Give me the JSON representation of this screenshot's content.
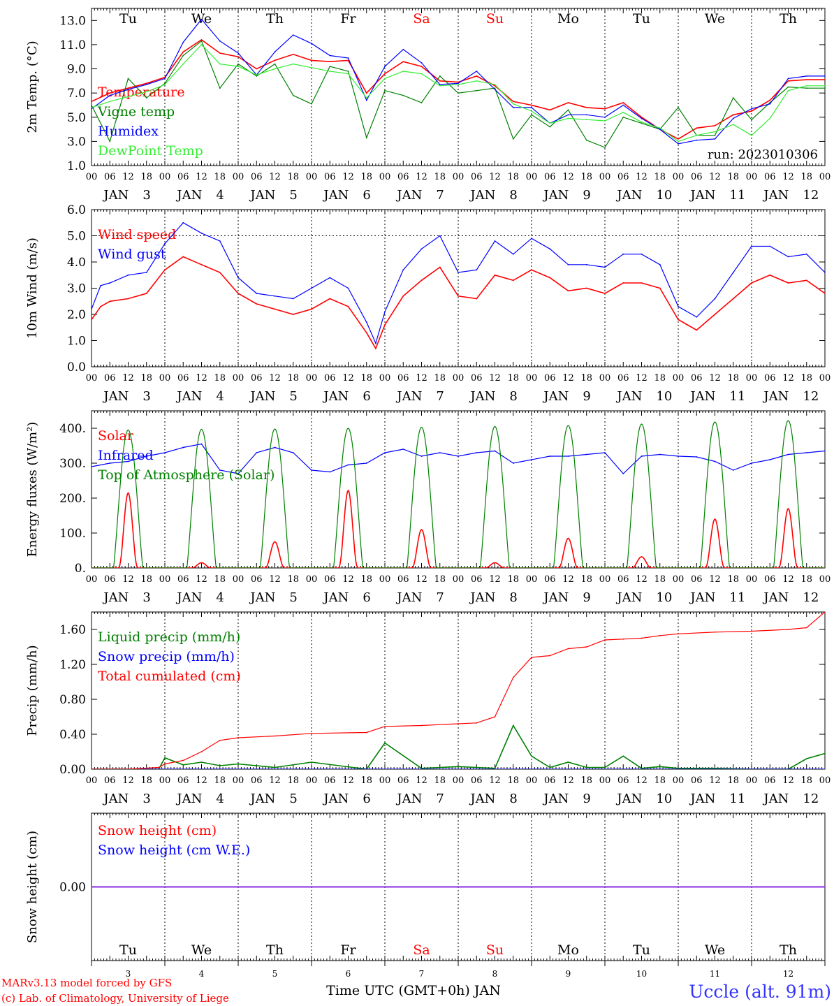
{
  "colors": {
    "temperature": "#ff0000",
    "vigne": "#008000",
    "humidex": "#0000ff",
    "dewpoint": "#33ee33",
    "weekend": "#ff0000",
    "axis": "#000000",
    "station": "#3333ff",
    "snow_line": "#8a2be2"
  },
  "days": [
    {
      "dow": "Tu",
      "month": "JAN",
      "date": "3",
      "weekend": false
    },
    {
      "dow": "We",
      "month": "JAN",
      "date": "4",
      "weekend": false
    },
    {
      "dow": "Th",
      "month": "JAN",
      "date": "5",
      "weekend": false
    },
    {
      "dow": "Fr",
      "month": "JAN",
      "date": "6",
      "weekend": false
    },
    {
      "dow": "Sa",
      "month": "JAN",
      "date": "7",
      "weekend": true
    },
    {
      "dow": "Su",
      "month": "JAN",
      "date": "8",
      "weekend": true
    },
    {
      "dow": "Mo",
      "month": "JAN",
      "date": "9",
      "weekend": false
    },
    {
      "dow": "Tu",
      "month": "JAN",
      "date": "10",
      "weekend": false
    },
    {
      "dow": "We",
      "month": "JAN",
      "date": "11",
      "weekend": false
    },
    {
      "dow": "Th",
      "month": "JAN",
      "date": "12",
      "weekend": false
    }
  ],
  "hour_ticks": [
    "00",
    "06",
    "12",
    "18"
  ],
  "final_tick": "00",
  "footer": {
    "model": "MARv3.13 model forced by GFS",
    "credit": "(c) Lab. of Climatology, University of Liege",
    "xaxis": "Time UTC (GMT+0h) JAN",
    "station": "Uccle (alt. 91m)"
  },
  "chart_data": [
    {
      "type": "line",
      "ylabel": "2m Temp. (°C)",
      "ylim": [
        1.0,
        14.0
      ],
      "yticks": [
        "1.0",
        "3.0",
        "5.0",
        "7.0",
        "9.0",
        "11.0",
        "13.0"
      ],
      "ytick_values": [
        1,
        3,
        5,
        7,
        9,
        11,
        13
      ],
      "annotation": "run: 2023010306",
      "x_hours_since_jan3_00": [
        0,
        6,
        12,
        18,
        24,
        30,
        36,
        42,
        48,
        54,
        60,
        66,
        72,
        78,
        84,
        90,
        96,
        102,
        108,
        114,
        120,
        126,
        132,
        138,
        144,
        150,
        156,
        162,
        168,
        174,
        180,
        186,
        192,
        198,
        204,
        210,
        216,
        222,
        228,
        234,
        240
      ],
      "series": [
        {
          "name": "Temperature",
          "color": "#ff0000",
          "values": [
            6.3,
            7.0,
            7.4,
            7.8,
            8.3,
            10.4,
            11.4,
            10.3,
            10.0,
            9.0,
            9.7,
            10.2,
            9.7,
            9.6,
            9.7,
            7.0,
            8.6,
            9.6,
            9.2,
            8.0,
            7.9,
            8.4,
            7.6,
            6.3,
            6.0,
            5.6,
            6.2,
            5.8,
            5.7,
            6.2,
            5.0,
            4.0,
            3.2,
            4.1,
            4.3,
            5.2,
            5.5,
            6.4,
            8.0,
            8.1,
            8.1
          ]
        },
        {
          "name": "Vigne temp",
          "color": "#008000",
          "values": [
            6.0,
            3.0,
            8.2,
            6.6,
            7.8,
            10.1,
            11.3,
            7.4,
            9.4,
            8.4,
            9.4,
            6.8,
            6.1,
            9.2,
            8.8,
            3.3,
            7.2,
            6.8,
            6.2,
            8.4,
            7.0,
            7.2,
            7.4,
            3.2,
            5.2,
            4.2,
            5.6,
            3.1,
            2.5,
            5.0,
            4.5,
            4.0,
            5.8,
            3.5,
            3.5,
            6.6,
            4.8,
            6.2,
            7.5,
            7.4,
            7.4
          ]
        },
        {
          "name": "Humidex",
          "color": "#0000ff",
          "values": [
            5.7,
            6.8,
            7.3,
            7.7,
            8.2,
            11.2,
            13.1,
            11.3,
            10.3,
            8.5,
            10.4,
            11.8,
            11.1,
            10.1,
            9.9,
            6.4,
            9.2,
            10.6,
            9.5,
            7.7,
            7.8,
            8.8,
            7.3,
            5.8,
            5.8,
            4.5,
            5.2,
            5.2,
            5.0,
            6.0,
            4.9,
            4.0,
            2.8,
            3.1,
            3.2,
            4.9,
            5.7,
            6.1,
            8.2,
            8.4,
            8.4
          ]
        },
        {
          "name": "DewPoint Temp",
          "color": "#33ee33",
          "values": [
            5.8,
            6.3,
            6.7,
            7.1,
            7.7,
            9.4,
            11.0,
            9.4,
            9.2,
            8.5,
            9.0,
            9.4,
            9.1,
            8.8,
            8.6,
            6.6,
            8.2,
            8.8,
            8.6,
            7.6,
            7.7,
            8.0,
            7.7,
            6.1,
            5.5,
            4.5,
            4.9,
            4.8,
            4.7,
            5.4,
            4.6,
            4.1,
            3.0,
            3.5,
            3.8,
            4.4,
            3.5,
            4.9,
            7.2,
            7.6,
            7.6
          ]
        }
      ]
    },
    {
      "type": "line",
      "ylabel": "10m Wind (m/s)",
      "ylim": [
        0.0,
        6.0
      ],
      "yticks": [
        "0.0",
        "1.0",
        "2.0",
        "3.0",
        "4.0",
        "5.0",
        "6.0"
      ],
      "ytick_values": [
        0,
        1,
        2,
        3,
        4,
        5,
        6
      ],
      "hline": 5.0,
      "x_hours_since_jan3_00": [
        0,
        3,
        6,
        12,
        18,
        24,
        30,
        36,
        42,
        48,
        54,
        60,
        66,
        72,
        78,
        84,
        90,
        93,
        96,
        102,
        108,
        114,
        120,
        126,
        132,
        138,
        144,
        150,
        156,
        162,
        168,
        174,
        180,
        186,
        192,
        198,
        204,
        210,
        216,
        222,
        228,
        234,
        240
      ],
      "series": [
        {
          "name": "Wind speed",
          "color": "#ff0000",
          "values": [
            1.8,
            2.3,
            2.5,
            2.6,
            2.8,
            3.7,
            4.2,
            3.9,
            3.6,
            2.8,
            2.4,
            2.2,
            2.0,
            2.2,
            2.6,
            2.3,
            1.3,
            0.7,
            1.6,
            2.7,
            3.3,
            3.8,
            2.7,
            2.6,
            3.5,
            3.3,
            3.7,
            3.4,
            2.9,
            3.0,
            2.8,
            3.2,
            3.2,
            3.0,
            1.8,
            1.4,
            2.0,
            2.6,
            3.2,
            3.5,
            3.2,
            3.3,
            2.8
          ]
        },
        {
          "name": "Wind gust",
          "color": "#0000ff",
          "values": [
            2.2,
            3.1,
            3.2,
            3.5,
            3.6,
            4.7,
            5.5,
            5.1,
            4.8,
            3.4,
            2.8,
            2.7,
            2.6,
            3.0,
            3.4,
            3.0,
            1.7,
            0.9,
            2.1,
            3.7,
            4.5,
            5.0,
            3.6,
            3.7,
            4.8,
            4.3,
            4.9,
            4.5,
            3.9,
            3.9,
            3.8,
            4.3,
            4.3,
            3.9,
            2.3,
            1.9,
            2.6,
            3.6,
            4.6,
            4.6,
            4.2,
            4.3,
            3.6
          ]
        }
      ]
    },
    {
      "type": "line",
      "ylabel": "Energy fluxes (W/m²)",
      "ylim": [
        0,
        450
      ],
      "yticks": [
        "0.",
        "100.",
        "200.",
        "300.",
        "400."
      ],
      "ytick_values": [
        0,
        100,
        200,
        300,
        400
      ],
      "diurnal_peaks": {
        "Solar": [
          215,
          15,
          75,
          222,
          110,
          15,
          85,
          32,
          140,
          170
        ],
        "Top of Atmosphere (Solar)": [
          395,
          397,
          398,
          400,
          403,
          405,
          408,
          412,
          418,
          422
        ]
      },
      "x_hours_since_jan3_00": [
        0,
        6,
        12,
        18,
        24,
        30,
        36,
        42,
        48,
        54,
        60,
        66,
        72,
        78,
        84,
        90,
        96,
        102,
        108,
        114,
        120,
        126,
        132,
        138,
        144,
        150,
        156,
        162,
        168,
        174,
        180,
        186,
        192,
        198,
        204,
        210,
        216,
        222,
        228,
        234,
        240
      ],
      "series": [
        {
          "name": "Solar",
          "color": "#ff0000",
          "values": []
        },
        {
          "name": "Infrared",
          "color": "#0000ff",
          "values": [
            290,
            300,
            305,
            320,
            330,
            345,
            355,
            280,
            270,
            330,
            345,
            330,
            280,
            275,
            295,
            300,
            330,
            340,
            320,
            330,
            320,
            330,
            335,
            300,
            310,
            320,
            320,
            325,
            330,
            270,
            320,
            325,
            320,
            318,
            305,
            280,
            300,
            310,
            325,
            330,
            335
          ]
        },
        {
          "name": "Top of Atmosphere (Solar)",
          "color": "#008000",
          "values": []
        }
      ]
    },
    {
      "type": "line",
      "ylabel": "Precip (mm/h)",
      "ylim": [
        0.0,
        1.8
      ],
      "yticks": [
        "0.00",
        "0.40",
        "0.80",
        "1.20",
        "1.60"
      ],
      "ytick_values": [
        0,
        0.4,
        0.8,
        1.2,
        1.6
      ],
      "x_hours_since_jan3_00": [
        0,
        12,
        22,
        24,
        30,
        36,
        42,
        48,
        60,
        72,
        90,
        96,
        108,
        120,
        126,
        132,
        138,
        144,
        150,
        156,
        162,
        168,
        174,
        180,
        186,
        192,
        204,
        216,
        228,
        234,
        240
      ],
      "series": [
        {
          "name": "Liquid precip (mm/h)",
          "color": "#008000",
          "values": [
            0,
            0,
            0,
            0.13,
            0.05,
            0.08,
            0.04,
            0.06,
            0.02,
            0.08,
            0,
            0.3,
            0.01,
            0.03,
            0.02,
            0.01,
            0.5,
            0.15,
            0.02,
            0.08,
            0.02,
            0.02,
            0.15,
            0.01,
            0.03,
            0.01,
            0.01,
            0,
            0,
            0.12,
            0.18
          ]
        },
        {
          "name": "Snow precip (mm/h)",
          "color": "#0000ff",
          "values": [
            0,
            0,
            0,
            0,
            0,
            0,
            0,
            0,
            0,
            0,
            0,
            0,
            0,
            0,
            0,
            0,
            0,
            0,
            0,
            0,
            0,
            0,
            0,
            0,
            0,
            0,
            0,
            0,
            0,
            0,
            0
          ]
        },
        {
          "name": "Total cumulated (cm)",
          "color": "#ff0000",
          "values": [
            0,
            0,
            0.02,
            0.06,
            0.1,
            0.2,
            0.33,
            0.36,
            0.38,
            0.41,
            0.42,
            0.49,
            0.5,
            0.52,
            0.53,
            0.6,
            1.05,
            1.28,
            1.3,
            1.38,
            1.4,
            1.48,
            1.49,
            1.5,
            1.53,
            1.55,
            1.57,
            1.58,
            1.6,
            1.62,
            1.8
          ]
        }
      ]
    },
    {
      "type": "line",
      "ylabel": "Snow height (cm)",
      "ylim": [
        -1.0,
        1.0
      ],
      "yticks": [
        "0.00"
      ],
      "ytick_values": [
        0
      ],
      "x_hours_since_jan3_00": [
        0,
        240
      ],
      "series": [
        {
          "name": "Snow height (cm)",
          "color": "#ff0000",
          "values": [
            0,
            0
          ]
        },
        {
          "name": "Snow height (cm W.E.)",
          "color": "#0000ff",
          "values": [
            0,
            0
          ]
        }
      ]
    }
  ]
}
